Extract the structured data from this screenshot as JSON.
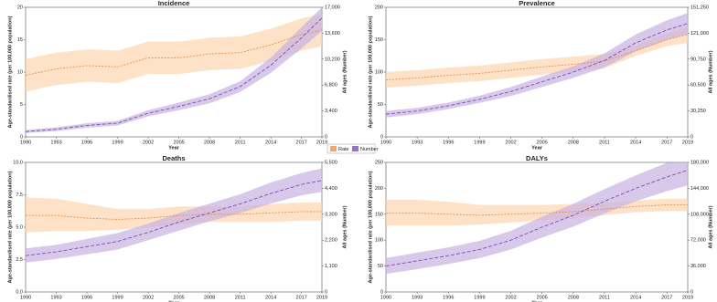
{
  "legend": [
    {
      "name": "Rate",
      "color": "#f0a868"
    },
    {
      "name": "Number",
      "color": "#9a70c4"
    }
  ],
  "chart_data": [
    {
      "type": "line",
      "title": "Incidence",
      "xlabel": "Year",
      "ylabel": "Age-standardised rate (per 100,000 population)",
      "y2label": "All ages (Number)",
      "x": [
        1990,
        1993,
        1996,
        1999,
        2002,
        2005,
        2008,
        2011,
        2014,
        2017,
        2019
      ],
      "xlim": [
        1990,
        2019
      ],
      "xticks": [
        1990,
        1993,
        1996,
        1999,
        2002,
        2005,
        2008,
        2011,
        2014,
        2017,
        2019
      ],
      "ylim": [
        0,
        20
      ],
      "yticks": [
        0,
        5,
        10,
        15,
        20
      ],
      "y2lim": [
        0,
        17000
      ],
      "y2ticks": [
        0,
        {
          "value": 3400,
          "label": "3,400"
        },
        {
          "value": 6800,
          "label": "6,800"
        },
        {
          "value": 10200,
          "label": "10,200"
        },
        {
          "value": 13600,
          "label": "13,600"
        },
        {
          "value": 17000,
          "label": "17,000"
        }
      ],
      "series": [
        {
          "color": "#e8904a",
          "band_color": "#fcd5b0",
          "values": [
            9.5,
            10.5,
            11,
            10.8,
            12.2,
            12.2,
            12.8,
            13,
            14.2,
            15.8,
            16.5
          ],
          "lower": [
            7,
            8,
            8.5,
            8.3,
            9.7,
            9.7,
            10.3,
            10.5,
            11.7,
            13.3,
            14
          ],
          "upper": [
            12,
            13,
            13.5,
            13.3,
            14.7,
            14.7,
            15.3,
            15.5,
            16.7,
            18.3,
            19
          ]
        },
        {
          "color": "#7a4fb0",
          "band_color": "#c8b2e2",
          "axis": "y2",
          "values": [
            700,
            1000,
            1500,
            1800,
            3100,
            4000,
            5000,
            6600,
            9400,
            13000,
            15600
          ],
          "lower": [
            500,
            750,
            1200,
            1500,
            2700,
            3500,
            4400,
            5900,
            8400,
            11600,
            13900
          ],
          "upper": [
            900,
            1250,
            1800,
            2100,
            3500,
            4500,
            5600,
            7300,
            10400,
            14400,
            17000
          ]
        }
      ]
    },
    {
      "type": "line",
      "title": "Prevalence",
      "xlabel": "Year",
      "ylabel": "Age-standardised rate (per 100,000 population)",
      "y2label": "All ages (Number)",
      "x": [
        1990,
        1993,
        1996,
        1999,
        2002,
        2005,
        2008,
        2011,
        2014,
        2017,
        2019
      ],
      "xlim": [
        1990,
        2019
      ],
      "xticks": [
        1990,
        1993,
        1996,
        1999,
        2002,
        2005,
        2008,
        2011,
        2014,
        2017,
        2019
      ],
      "ylim": [
        0,
        200
      ],
      "yticks": [
        0,
        50,
        100,
        150,
        200
      ],
      "y2lim": [
        0,
        151250
      ],
      "y2ticks": [
        0,
        {
          "value": 30250,
          "label": "30,250"
        },
        {
          "value": 60500,
          "label": "60,500"
        },
        {
          "value": 90750,
          "label": "90,750"
        },
        {
          "value": 121000,
          "label": "121,000"
        },
        {
          "value": 151250,
          "label": "151,250"
        }
      ],
      "series": [
        {
          "color": "#e8904a",
          "band_color": "#fcd5b0",
          "values": [
            88,
            91,
            95,
            98,
            103,
            108,
            112,
            117,
            133,
            150,
            158
          ],
          "lower": [
            76,
            79,
            83,
            86,
            91,
            96,
            100,
            106,
            125,
            140,
            145
          ],
          "upper": [
            100,
            103,
            107,
            110,
            115,
            120,
            124,
            128,
            141,
            160,
            170
          ]
        },
        {
          "color": "#7a4fb0",
          "band_color": "#c8b2e2",
          "axis": "y2",
          "values": [
            26500,
            30200,
            36300,
            43900,
            52900,
            64300,
            75600,
            89200,
            109700,
            124800,
            132300
          ],
          "lower": [
            22700,
            26500,
            32500,
            39700,
            47600,
            58200,
            68800,
            81000,
            99800,
            113500,
            120000
          ],
          "upper": [
            30200,
            34000,
            40100,
            48100,
            58200,
            70400,
            82400,
            97400,
            119600,
            136100,
            144600
          ]
        }
      ]
    },
    {
      "type": "line",
      "title": "Deaths",
      "xlabel": "Year",
      "ylabel": "Age-standardised rate (per 100,000 population)",
      "y2label": "All ages (Number)",
      "x": [
        1990,
        1993,
        1996,
        1999,
        2002,
        2005,
        2008,
        2011,
        2014,
        2017,
        2019
      ],
      "xlim": [
        1990,
        2019
      ],
      "xticks": [
        1990,
        1993,
        1996,
        1999,
        2002,
        2005,
        2008,
        2011,
        2014,
        2017,
        2019
      ],
      "ylim": [
        0,
        10
      ],
      "yticks": [
        {
          "value": 0,
          "label": "0.0"
        },
        2.5,
        {
          "value": 5,
          "label": "5.0"
        },
        7.5,
        {
          "value": 10,
          "label": "10.0"
        }
      ],
      "y2lim": [
        0,
        5500
      ],
      "y2ticks": [
        0,
        {
          "value": 1100,
          "label": "1,100"
        },
        {
          "value": 2200,
          "label": "2,200"
        },
        {
          "value": 3300,
          "label": "3,300"
        },
        {
          "value": 4400,
          "label": "4,400"
        },
        {
          "value": 5500,
          "label": "5,500"
        }
      ],
      "series": [
        {
          "color": "#e8904a",
          "band_color": "#fcd5b0",
          "values": [
            5.9,
            5.9,
            5.7,
            5.6,
            5.7,
            5.9,
            6,
            6,
            6.1,
            6.2,
            6.2
          ],
          "lower": [
            4.6,
            4.7,
            4.7,
            4.8,
            5,
            5.2,
            5.4,
            5.4,
            5.4,
            5.5,
            5.5
          ],
          "upper": [
            7.3,
            7.2,
            6.8,
            6.4,
            6.4,
            6.6,
            6.6,
            6.6,
            6.8,
            6.9,
            6.9
          ]
        },
        {
          "color": "#7a4fb0",
          "band_color": "#c8b2e2",
          "axis": "y2",
          "values": [
            1540,
            1705,
            1925,
            2145,
            2530,
            2970,
            3355,
            3740,
            4180,
            4565,
            4730
          ],
          "lower": [
            1250,
            1400,
            1600,
            1800,
            2200,
            2600,
            3000,
            3350,
            3750,
            4100,
            4250
          ],
          "upper": [
            1850,
            2000,
            2250,
            2500,
            2900,
            3350,
            3750,
            4150,
            4650,
            5050,
            5250
          ]
        }
      ]
    },
    {
      "type": "line",
      "title": "DALYs",
      "xlabel": "Year",
      "ylabel": "Age-standardised rate (per 100,000 population)",
      "y2label": "All ages (Number)",
      "x": [
        1990,
        1993,
        1996,
        1999,
        2002,
        2005,
        2008,
        2011,
        2014,
        2017,
        2019
      ],
      "xlim": [
        1990,
        2019
      ],
      "xticks": [
        1990,
        1993,
        1996,
        1999,
        2002,
        2005,
        2008,
        2011,
        2014,
        2017,
        2019
      ],
      "ylim": [
        0,
        250
      ],
      "yticks": [
        0,
        50,
        100,
        150,
        200,
        250
      ],
      "y2lim": [
        0,
        180000
      ],
      "y2ticks": [
        0,
        {
          "value": 36000,
          "label": "36,000"
        },
        {
          "value": 72000,
          "label": "72,000"
        },
        {
          "value": 108000,
          "label": "108,000"
        },
        {
          "value": 144000,
          "label": "144,000"
        },
        {
          "value": 180000,
          "label": "180,000"
        }
      ],
      "series": [
        {
          "color": "#e8904a",
          "band_color": "#fcd5b0",
          "values": [
            152,
            152,
            150,
            148,
            150,
            152,
            155,
            160,
            165,
            168,
            168
          ],
          "lower": [
            128,
            128,
            128,
            130,
            134,
            138,
            142,
            148,
            154,
            156,
            156
          ],
          "upper": [
            178,
            178,
            174,
            168,
            168,
            168,
            170,
            172,
            176,
            180,
            180
          ]
        },
        {
          "color": "#7a4fb0",
          "band_color": "#c8b2e2",
          "axis": "y2",
          "values": [
            36000,
            43200,
            50400,
            59000,
            72000,
            90000,
            106600,
            126000,
            144000,
            159800,
            169200
          ],
          "lower": [
            25000,
            31700,
            38800,
            47000,
            59000,
            75600,
            90800,
            109000,
            126000,
            140000,
            148000
          ],
          "upper": [
            47000,
            54700,
            62000,
            71000,
            85000,
            104400,
            122400,
            143000,
            162000,
            179600,
            180000
          ]
        }
      ]
    }
  ]
}
